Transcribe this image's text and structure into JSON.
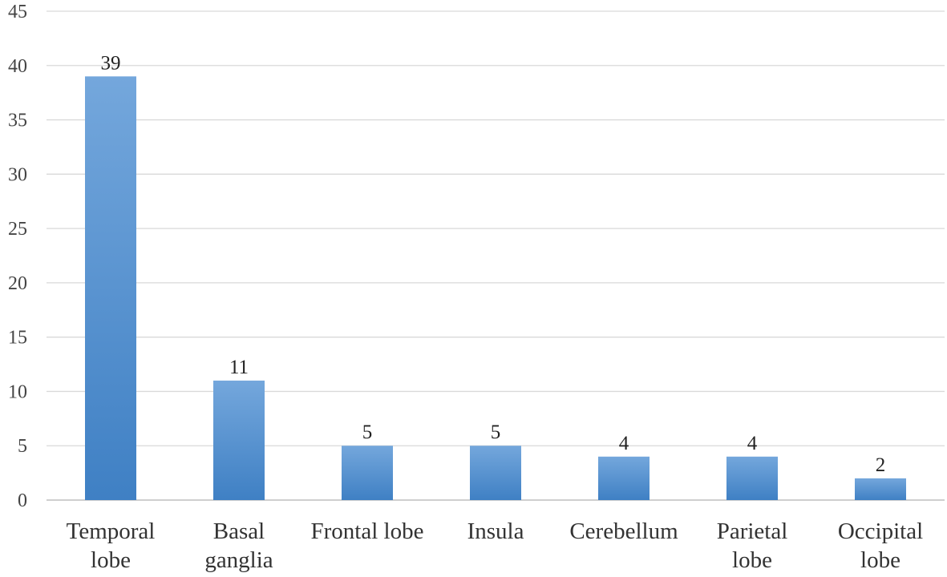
{
  "chart_data": {
    "type": "bar",
    "title": "",
    "xlabel": "",
    "ylabel": "",
    "categories": [
      [
        "Temporal",
        "lobe"
      ],
      [
        "Basal",
        "ganglia"
      ],
      [
        "Frontal lobe"
      ],
      [
        "Insula"
      ],
      [
        "Cerebellum"
      ],
      [
        "Parietal",
        "lobe"
      ],
      [
        "Occipital",
        "lobe"
      ]
    ],
    "values": [
      39,
      11,
      5,
      5,
      4,
      4,
      2
    ],
    "ylim": [
      0,
      45
    ],
    "yticks": [
      0,
      5,
      10,
      15,
      20,
      25,
      30,
      35,
      40,
      45
    ],
    "grid": true,
    "legend": "none",
    "colors": {
      "bar_top": "#74a7dc",
      "bar_bottom": "#3f80c4",
      "gridline": "#d9d9d9"
    }
  }
}
